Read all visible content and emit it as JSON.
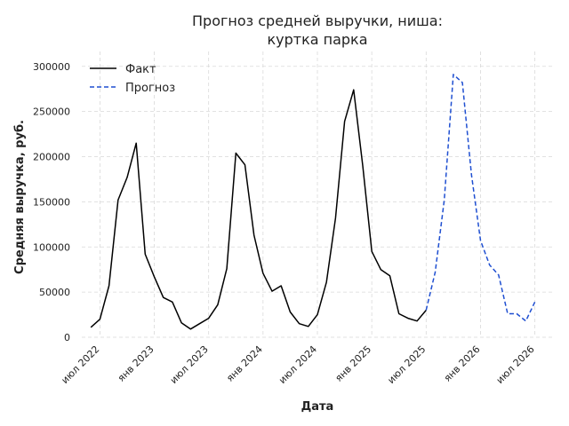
{
  "chart_data": {
    "type": "line",
    "title": [
      "Прогноз средней выручки, ниша:",
      "куртка парка"
    ],
    "xlabel": "Дата",
    "ylabel": "Средняя выручка, руб.",
    "ylim": [
      0,
      300000
    ],
    "yticks": [
      0,
      50000,
      100000,
      150000,
      200000,
      250000,
      300000
    ],
    "yticklabels": [
      "0",
      "50000",
      "100000",
      "150000",
      "200000",
      "250000",
      "300000"
    ],
    "xlim": [
      "2022-05",
      "2026-09"
    ],
    "xticks": [
      "2022-07",
      "2023-01",
      "2023-07",
      "2024-01",
      "2024-07",
      "2025-01",
      "2025-07",
      "2026-01",
      "2026-07"
    ],
    "xticklabels": [
      "июл 2022",
      "янв 2023",
      "июл 2023",
      "янв 2024",
      "июл 2024",
      "янв 2025",
      "июл 2025",
      "янв 2026",
      "июл 2026"
    ],
    "grid": true,
    "legend_position": "top-left",
    "series": [
      {
        "name": "Факт",
        "color": "#000000",
        "style": "solid",
        "x": [
          "2022-06",
          "2022-07",
          "2022-08",
          "2022-09",
          "2022-10",
          "2022-11",
          "2022-12",
          "2023-01",
          "2023-02",
          "2023-03",
          "2023-04",
          "2023-05",
          "2023-06",
          "2023-07",
          "2023-08",
          "2023-09",
          "2023-10",
          "2023-11",
          "2023-12",
          "2024-01",
          "2024-02",
          "2024-03",
          "2024-04",
          "2024-05",
          "2024-06",
          "2024-07",
          "2024-08",
          "2024-09",
          "2024-10",
          "2024-11",
          "2024-12",
          "2025-01",
          "2025-02",
          "2025-03",
          "2025-04",
          "2025-05",
          "2025-06",
          "2025-07"
        ],
        "y": [
          11000,
          20000,
          57000,
          152000,
          177000,
          215000,
          92000,
          67000,
          44000,
          39000,
          16000,
          9000,
          15000,
          21000,
          36000,
          76000,
          204000,
          191000,
          113000,
          71000,
          51000,
          57000,
          28000,
          15000,
          12000,
          25000,
          61000,
          132000,
          239000,
          274000,
          190000,
          95000,
          75000,
          68000,
          26000,
          21000,
          18000,
          30000
        ]
      },
      {
        "name": "Прогноз",
        "color": "#1f4fd1",
        "style": "dashed",
        "x": [
          "2025-07",
          "2025-08",
          "2025-09",
          "2025-10",
          "2025-11",
          "2025-12",
          "2026-01",
          "2026-02",
          "2026-03",
          "2026-04",
          "2026-05",
          "2026-06",
          "2026-07",
          "2026-08"
        ],
        "y": [
          30000,
          72000,
          152000,
          291000,
          282000,
          180000,
          107000,
          80000,
          69000,
          26000,
          26000,
          18000,
          39000,
          null
        ]
      }
    ]
  }
}
